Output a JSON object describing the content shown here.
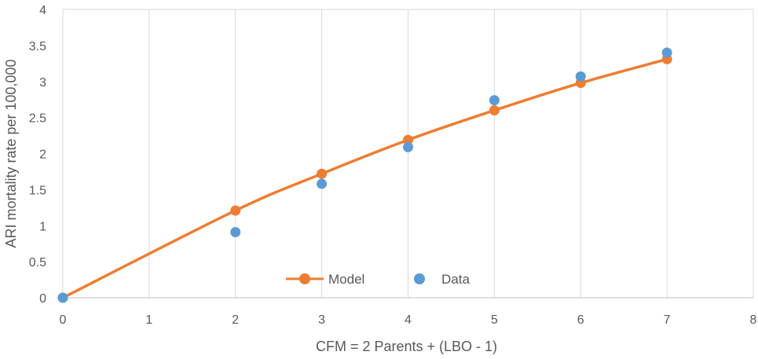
{
  "chart_data": {
    "type": "scatter",
    "xlabel": "CFM = 2 Parents + (LBO - 1)",
    "ylabel": "ARI mortality rate per 100,000",
    "xlim": [
      0,
      8
    ],
    "ylim": [
      0,
      4
    ],
    "x_ticks": [
      "0",
      "1",
      "2",
      "3",
      "4",
      "5",
      "6",
      "7",
      "8"
    ],
    "y_ticks": [
      "0",
      "0.5",
      "1",
      "1.5",
      "2",
      "2.5",
      "3",
      "3.5",
      "4"
    ],
    "grid": "vertical",
    "legend_position": "bottom-center",
    "series": [
      {
        "name": "Model",
        "kind": "line-with-markers",
        "color": "#ED7D31",
        "points": [
          {
            "x": 0,
            "y": 0
          },
          {
            "x": 2,
            "y": 1.21
          },
          {
            "x": 3,
            "y": 1.72
          },
          {
            "x": 4,
            "y": 2.19
          },
          {
            "x": 5,
            "y": 2.6
          },
          {
            "x": 6,
            "y": 2.98
          },
          {
            "x": 7,
            "y": 3.31
          }
        ]
      },
      {
        "name": "Data",
        "kind": "markers",
        "color": "#5B9BD5",
        "points": [
          {
            "x": 0,
            "y": 0
          },
          {
            "x": 2,
            "y": 0.91
          },
          {
            "x": 3,
            "y": 1.58
          },
          {
            "x": 4,
            "y": 2.09
          },
          {
            "x": 5,
            "y": 2.74
          },
          {
            "x": 6,
            "y": 3.07
          },
          {
            "x": 7,
            "y": 3.4
          }
        ]
      }
    ]
  }
}
